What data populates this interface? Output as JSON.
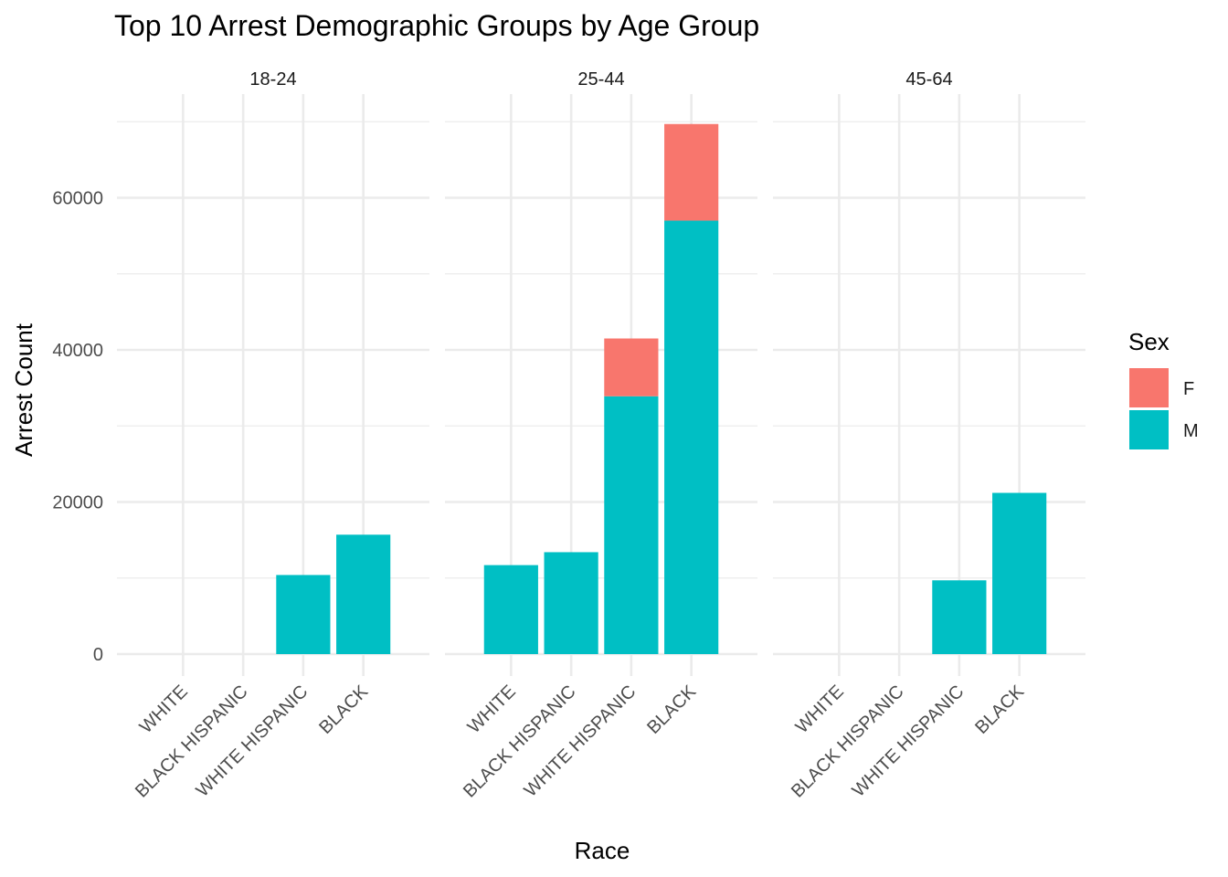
{
  "chart_data": {
    "type": "bar",
    "stacked": true,
    "title": "Top 10 Arrest Demographic Groups by Age Group",
    "xlabel": "Race",
    "ylabel": "Arrest Count",
    "ylim": [
      0,
      70000
    ],
    "yticks": [
      0,
      20000,
      40000,
      60000
    ],
    "grid": true,
    "legend": {
      "title": "Sex",
      "position": "right",
      "entries": [
        {
          "label": "F",
          "color": "#F8766D"
        },
        {
          "label": "M",
          "color": "#00BFC4"
        }
      ]
    },
    "categories": [
      "WHITE",
      "BLACK HISPANIC",
      "WHITE HISPANIC",
      "BLACK"
    ],
    "facets": [
      {
        "label": "18-24",
        "series": [
          {
            "name": "M",
            "values": [
              0,
              0,
              10400,
              15700
            ]
          },
          {
            "name": "F",
            "values": [
              0,
              0,
              0,
              0
            ]
          }
        ]
      },
      {
        "label": "25-44",
        "series": [
          {
            "name": "M",
            "values": [
              11700,
              13400,
              33900,
              57000
            ]
          },
          {
            "name": "F",
            "values": [
              0,
              0,
              7600,
              12700
            ]
          }
        ]
      },
      {
        "label": "45-64",
        "series": [
          {
            "name": "M",
            "values": [
              0,
              0,
              9700,
              21200
            ]
          },
          {
            "name": "F",
            "values": [
              0,
              0,
              0,
              0
            ]
          }
        ]
      }
    ]
  }
}
